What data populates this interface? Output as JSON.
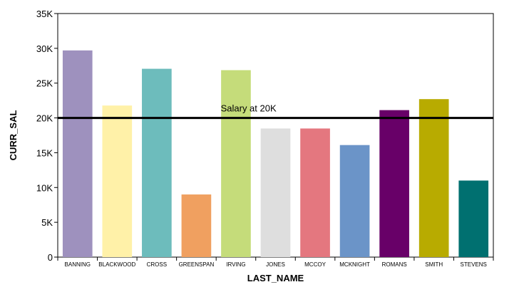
{
  "chart_data": {
    "type": "bar",
    "categories": [
      "BANNING",
      "BLACKWOOD",
      "CROSS",
      "GREENSPAN",
      "IRVING",
      "JONES",
      "MCCOY",
      "MCKNIGHT",
      "ROMANS",
      "SMITH",
      "STEVENS"
    ],
    "values": [
      29700,
      21780,
      27062,
      9000,
      26862,
      18480,
      18480,
      16100,
      21120,
      22700,
      11000
    ],
    "colors": [
      "#9e91be",
      "#fff1a8",
      "#6dbcbc",
      "#f0a060",
      "#c5dc7a",
      "#dedede",
      "#e4777f",
      "#6b94c8",
      "#680068",
      "#b8ab00",
      "#007070"
    ],
    "xlabel": "LAST_NAME",
    "ylabel": "CURR_SAL",
    "ylim": [
      0,
      35000
    ],
    "y_ticks": [
      0,
      5000,
      10000,
      15000,
      20000,
      25000,
      30000,
      35000
    ],
    "y_tick_labels": [
      "0",
      "5K",
      "10K",
      "15K",
      "20K",
      "25K",
      "30K",
      "35K"
    ],
    "reference_line": {
      "value": 20000,
      "label": "Salary at 20K"
    },
    "grid": false,
    "legend": "none"
  }
}
